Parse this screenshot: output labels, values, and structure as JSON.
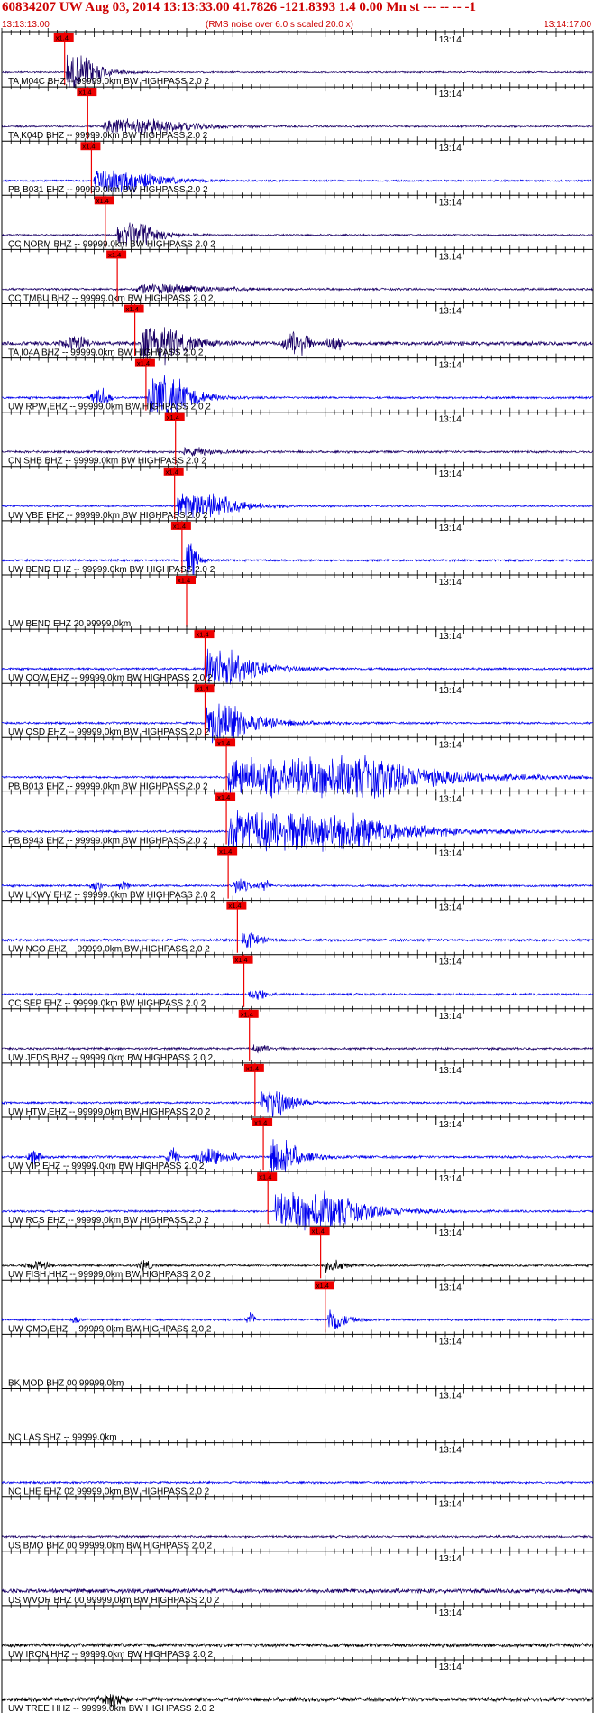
{
  "header": {
    "title": "60834207 UW Aug 03, 2014 13:13:33.00   41.7826 -121.8393  1.4 0.00 Mn st --- -- --   -1",
    "start_time": "13:13:13.00",
    "rms_note": "(RMS noise over 6.0 s scaled 20.0 x)",
    "end_time": "13:14:17.00"
  },
  "colors": {
    "blue": "#0000ee",
    "navy": "#1a0066",
    "black": "#000000",
    "pick_red": "#ee0000",
    "header_red": "#cc0000"
  },
  "chart_data": {
    "type": "line",
    "title": "60834207 UW Aug 03, 2014 13:13:33.00   41.7826 -121.8393  1.4 0.00 Mn st --- -- --   -1",
    "x_range": [
      "13:13:13.00",
      "13:14:17.00"
    ],
    "time_marker_label": "13:14",
    "pick_label": "x1.4",
    "grid": "vertical tick marks every second on each trace baseline",
    "traces": [
      {
        "label": "TA M04C BHZ -- 99999.0km BW  HIGHPASS  2.0  2",
        "color": "navy",
        "pick_s": 6.8,
        "burst_s": 7.0,
        "burst_amp": 20,
        "noise": 0.22,
        "dur": 2.5,
        "decay": 1.5
      },
      {
        "label": "TA K04D BHZ -- 99999.0km BW  HIGHPASS  2.0  2",
        "color": "navy",
        "pick_s": 9.3,
        "burst_s": 11.0,
        "burst_amp": 9,
        "noise": 0.25,
        "dur": 6,
        "decay": 4
      },
      {
        "label": "PB B031 EHZ -- 99999.0km BW  HIGHPASS  2.0  2",
        "color": "blue",
        "pick_s": 9.7,
        "burst_s": 10.0,
        "burst_amp": 14,
        "noise": 0.25,
        "dur": 4,
        "decay": 3
      },
      {
        "label": "CC NORM BHZ -- 99999.0km BW  HIGHPASS  2.0  2",
        "color": "navy",
        "pick_s": 11.2,
        "burst_s": 12.5,
        "burst_amp": 13,
        "noise": 0.22,
        "dur": 3,
        "decay": 2
      },
      {
        "label": "CC TMBU BHZ -- 99999.0km BW  HIGHPASS  2.0  2",
        "color": "navy",
        "pick_s": 12.5,
        "burst_s": 14.5,
        "burst_amp": 5,
        "noise": 0.3,
        "dur": 5,
        "decay": 4
      },
      {
        "label": "TA I04A BHZ -- 99999.0km BW  HIGHPASS  2.0  2",
        "color": "navy",
        "pick_s": 14.4,
        "burst_s": 15.0,
        "burst_amp": 22,
        "noise": 0.55,
        "dur": 3,
        "decay": 2,
        "extra": [
          [
            8.0,
            10,
            2
          ],
          [
            32.0,
            18,
            2
          ],
          [
            36.0,
            10,
            1.5
          ]
        ]
      },
      {
        "label": "UW RPW EHZ -- 99999.0km BW  HIGHPASS  2.0  2",
        "color": "blue",
        "pick_s": 15.6,
        "burst_s": 15.8,
        "burst_amp": 26,
        "noise": 0.3,
        "dur": 3,
        "decay": 2,
        "extra": [
          [
            10.7,
            14,
            1.5
          ]
        ]
      },
      {
        "label": "CN SHB BHZ -- 99999.0km BW  HIGHPASS  2.0  2",
        "color": "navy",
        "pick_s": 18.8,
        "burst_s": 19.5,
        "burst_amp": 4,
        "noise": 0.32,
        "dur": 2,
        "decay": 2
      },
      {
        "label": "UW VBE EHZ -- 99999.0km BW  HIGHPASS  2.0  2",
        "color": "blue",
        "pick_s": 18.7,
        "burst_s": 19.0,
        "burst_amp": 16,
        "noise": 0.22,
        "dur": 4,
        "decay": 3
      },
      {
        "label": "UW BEND EHZ -- 99999.0km BW  HIGHPASS  2.0  2",
        "color": "blue",
        "pick_s": 19.5,
        "burst_s": 20.0,
        "burst_amp": 22,
        "noise": 0.3,
        "dur": 0.7,
        "decay": 0.5
      },
      {
        "label": "UW BEND EHZ 20 99999.0km",
        "color": "blue",
        "pick_s": 20.0,
        "burst_s": 20.0,
        "burst_amp": 0,
        "noise": 0,
        "dur": 0,
        "decay": 1
      },
      {
        "label": "UW OOW EHZ -- 99999.0km BW  HIGHPASS  2.0  2",
        "color": "blue",
        "pick_s": 22.0,
        "burst_s": 22.0,
        "burst_amp": 28,
        "noise": 0.3,
        "dur": 2.2,
        "decay": 3
      },
      {
        "label": "UW OSD EHZ -- 99999.0km BW  HIGHPASS  2.0  2",
        "color": "blue",
        "pick_s": 22.0,
        "burst_s": 22.0,
        "burst_amp": 28,
        "noise": 0.3,
        "dur": 2.2,
        "decay": 3
      },
      {
        "label": "PB B013 EHZ -- 99999.0km BW  HIGHPASS  2.0  2",
        "color": "blue",
        "pick_s": 24.3,
        "burst_s": 24.5,
        "burst_amp": 24,
        "noise": 0.3,
        "dur": 16,
        "decay": 7
      },
      {
        "label": "PB B943 EHZ -- 99999.0km BW  HIGHPASS  2.0  2",
        "color": "blue",
        "pick_s": 24.3,
        "burst_s": 24.5,
        "burst_amp": 24,
        "noise": 0.3,
        "dur": 13,
        "decay": 6
      },
      {
        "label": "UW LKWV EHZ -- 99999.0km BW  HIGHPASS  2.0  2",
        "color": "blue",
        "pick_s": 24.5,
        "burst_s": 25.0,
        "burst_amp": 9,
        "noise": 0.3,
        "dur": 1,
        "decay": 0.8,
        "extra": [
          [
            10.3,
            8,
            1
          ],
          [
            13.2,
            6,
            1
          ],
          [
            28.5,
            8,
            1
          ]
        ]
      },
      {
        "label": "UW NCO EHZ -- 99999.0km BW  HIGHPASS  2.0  2",
        "color": "blue",
        "pick_s": 25.5,
        "burst_s": 26.0,
        "burst_amp": 10,
        "noise": 0.35,
        "dur": 1,
        "decay": 1
      },
      {
        "label": "CC SEP EHZ -- 99999.0km BW  HIGHPASS  2.0  2",
        "color": "blue",
        "pick_s": 26.2,
        "burst_s": 26.7,
        "burst_amp": 7,
        "noise": 0.3,
        "dur": 1,
        "decay": 1
      },
      {
        "label": "UW JEDS BHZ -- 99999.0km BW  HIGHPASS  2.0  2",
        "color": "navy",
        "pick_s": 26.8,
        "burst_s": 27.2,
        "burst_amp": 4,
        "noise": 0.3,
        "dur": 1,
        "decay": 1
      },
      {
        "label": "UW HTW EHZ -- 99999.0km BW  HIGHPASS  2.0  2",
        "color": "blue",
        "pick_s": 27.4,
        "burst_s": 28.0,
        "burst_amp": 18,
        "noise": 0.3,
        "dur": 2,
        "decay": 1.5
      },
      {
        "label": "UW VIP EHZ -- 99999.0km BW  HIGHPASS  2.0  2",
        "color": "blue",
        "pick_s": 28.3,
        "burst_s": 29.0,
        "burst_amp": 20,
        "noise": 0.35,
        "dur": 2,
        "decay": 1.5,
        "extra": [
          [
            3.5,
            10,
            1
          ],
          [
            18.5,
            10,
            1
          ],
          [
            22.5,
            12,
            2
          ],
          [
            25.0,
            8,
            1
          ]
        ]
      },
      {
        "label": "UW RCS EHZ -- 99999.0km BW  HIGHPASS  2.0  2",
        "color": "blue",
        "pick_s": 28.8,
        "burst_s": 29.6,
        "burst_amp": 22,
        "noise": 0.3,
        "dur": 6,
        "decay": 4
      },
      {
        "label": "UW FISH HHZ -- 99999.0km BW  HIGHPASS  2.0  2",
        "color": "black",
        "pick_s": 34.5,
        "burst_s": 35.0,
        "burst_amp": 7,
        "noise": 0.3,
        "dur": 1,
        "decay": 1,
        "extra": [
          [
            4.0,
            6,
            2
          ],
          [
            15.5,
            8,
            1
          ]
        ]
      },
      {
        "label": "UW GMO EHZ -- 99999.0km BW  HIGHPASS  2.0  2",
        "color": "blue",
        "pick_s": 35.0,
        "burst_s": 35.3,
        "burst_amp": 14,
        "noise": 0.3,
        "dur": 1,
        "decay": 1,
        "extra": [
          [
            27.0,
            10,
            0.8
          ],
          [
            8.0,
            5,
            0.8
          ]
        ]
      },
      {
        "label": "BK MOD BHZ 00 99999.0km",
        "color": "black",
        "pick_s": null,
        "burst_s": 0,
        "burst_amp": 0,
        "noise": 0,
        "dur": 0,
        "decay": 1
      },
      {
        "label": "NC LAS SHZ -- 99999.0km",
        "color": "black",
        "pick_s": null,
        "burst_s": 0,
        "burst_amp": 0,
        "noise": 0,
        "dur": 0,
        "decay": 1
      },
      {
        "label": "NC LHE EHZ 02 99999.0km BW  HIGHPASS  2.0  2",
        "color": "blue",
        "pick_s": null,
        "burst_s": 0,
        "burst_amp": 0,
        "noise": 0.3,
        "dur": 0,
        "decay": 1
      },
      {
        "label": "US BMO BHZ 00 99999.0km BW  HIGHPASS  2.0  2",
        "color": "navy",
        "pick_s": null,
        "burst_s": 0,
        "burst_amp": 0,
        "noise": 0.3,
        "dur": 0,
        "decay": 1
      },
      {
        "label": "US WVOR BHZ 00 99999.0km BW  HIGHPASS  2.0  2",
        "color": "navy",
        "pick_s": null,
        "burst_s": 0,
        "burst_amp": 0,
        "noise": 0.6,
        "dur": 0,
        "decay": 1
      },
      {
        "label": "UW IRON HHZ -- 99999.0km BW  HIGHPASS  2.0  2",
        "color": "black",
        "pick_s": null,
        "burst_s": 0,
        "burst_amp": 0,
        "noise": 0.55,
        "dur": 0,
        "decay": 1
      },
      {
        "label": "UW TREE HHZ -- 99999.0km BW  HIGHPASS  2.0  2",
        "color": "black",
        "pick_s": null,
        "burst_s": 0,
        "burst_amp": 0,
        "noise": 0.6,
        "dur": 0,
        "decay": 1,
        "extra": [
          [
            12.0,
            8,
            2
          ]
        ]
      }
    ]
  }
}
